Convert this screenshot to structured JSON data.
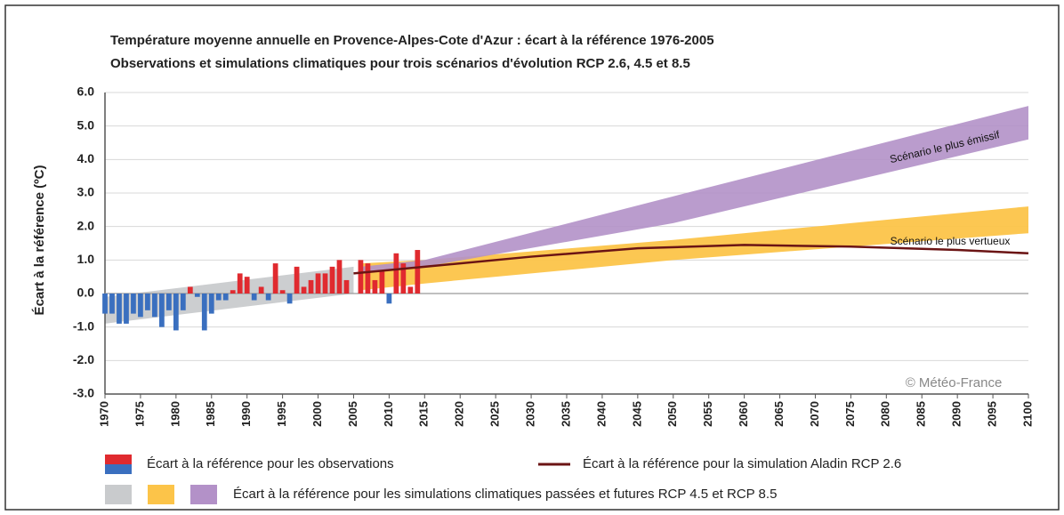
{
  "chart_data": {
    "type": "climate",
    "title": "Température moyenne annuelle en Provence-Alpes-Cote d'Azur : écart à la référence 1976-2005",
    "subtitle": "Observations et simulations climatiques pour trois scénarios d'évolution RCP 2.6, 4.5 et 8.5",
    "y_label": "Écart à la référence (ºC)",
    "xlim": [
      1970,
      2100
    ],
    "xticks": [
      1970,
      1975,
      1980,
      1985,
      1990,
      1995,
      2000,
      2005,
      2010,
      2015,
      2020,
      2025,
      2030,
      2035,
      2040,
      2045,
      2050,
      2055,
      2060,
      2065,
      2070,
      2075,
      2080,
      2085,
      2090,
      2095,
      2100
    ],
    "ylim": [
      -3,
      6
    ],
    "yticks": [
      {
        "value": 6,
        "label": "6.0"
      },
      {
        "value": 5,
        "label": "5.0"
      },
      {
        "value": 4,
        "label": "4.0"
      },
      {
        "value": 3,
        "label": "3.0"
      },
      {
        "value": 2,
        "label": "2.0"
      },
      {
        "value": 1,
        "label": "1.0"
      },
      {
        "value": 0,
        "label": "0.0"
      },
      {
        "value": -1,
        "label": "-1.0"
      },
      {
        "value": -2,
        "label": "-2.0"
      },
      {
        "value": -3,
        "label": "-3.0"
      }
    ],
    "grid": true,
    "bands": [
      {
        "color": "#c9cbcd",
        "x": [
          1970,
          2005
        ],
        "lower": [
          -0.9,
          0.0
        ],
        "upper": [
          -0.1,
          0.8
        ]
      },
      {
        "color": "#fcc449",
        "x": [
          2006,
          2015,
          2050,
          2100
        ],
        "lower": [
          0.1,
          0.3,
          1.0,
          1.8
        ],
        "upper": [
          0.9,
          1.0,
          1.6,
          2.6
        ]
      },
      {
        "color": "#b391c8",
        "x": [
          2006,
          2015,
          2050,
          2100
        ],
        "lower": [
          0.6,
          0.8,
          2.1,
          4.6
        ],
        "upper": [
          0.8,
          1.0,
          2.9,
          5.6
        ]
      }
    ],
    "observations": {
      "x": [
        1970,
        1971,
        1972,
        1973,
        1974,
        1975,
        1976,
        1977,
        1978,
        1979,
        1980,
        1981,
        1982,
        1983,
        1984,
        1985,
        1986,
        1987,
        1988,
        1989,
        1990,
        1991,
        1992,
        1993,
        1994,
        1995,
        1996,
        1997,
        1998,
        1999,
        2000,
        2001,
        2002,
        2003,
        2004,
        2005,
        2006,
        2007,
        2008,
        2009,
        2010,
        2011,
        2012,
        2013,
        2014
      ],
      "values": [
        -0.6,
        -0.6,
        -0.9,
        -0.9,
        -0.6,
        -0.7,
        -0.5,
        -0.7,
        -1.0,
        -0.5,
        -1.1,
        -0.5,
        0.2,
        -0.1,
        -1.1,
        -0.6,
        -0.2,
        -0.2,
        0.1,
        0.6,
        0.5,
        -0.2,
        0.2,
        -0.2,
        0.9,
        0.1,
        -0.3,
        0.8,
        0.2,
        0.4,
        0.6,
        0.6,
        0.8,
        1.0,
        0.4,
        0.0,
        1.0,
        0.9,
        0.4,
        0.7,
        -0.3,
        1.2,
        0.9,
        0.2,
        1.3
      ],
      "positive_color": "#e02a2f",
      "negative_color": "#3a6fbf"
    },
    "line": {
      "color": "#6b1414",
      "x": [
        2005,
        2015,
        2030,
        2045,
        2060,
        2075,
        2090,
        2100
      ],
      "values": [
        0.6,
        0.8,
        1.1,
        1.35,
        1.45,
        1.4,
        1.3,
        1.2
      ]
    },
    "annotations": [
      "Scénario le plus émissif",
      "Scénario le plus vertueux",
      "© Météo-France"
    ],
    "legend": [
      {
        "label": "Écart à la référence pour les observations",
        "colors": [
          "#e02a2f",
          "#3a6fbf"
        ],
        "kind": "split"
      },
      {
        "label": "Écart à la référence pour la simulation Aladin RCP 2.6",
        "colors": [
          "#6b1414"
        ],
        "kind": "line"
      },
      {
        "label": "Écart à la référence pour les simulations climatiques passées et futures RCP 4.5 et RCP 8.5",
        "colors": [
          "#c9cbcd",
          "#fcc449",
          "#b391c8"
        ],
        "kind": "boxes"
      }
    ]
  }
}
